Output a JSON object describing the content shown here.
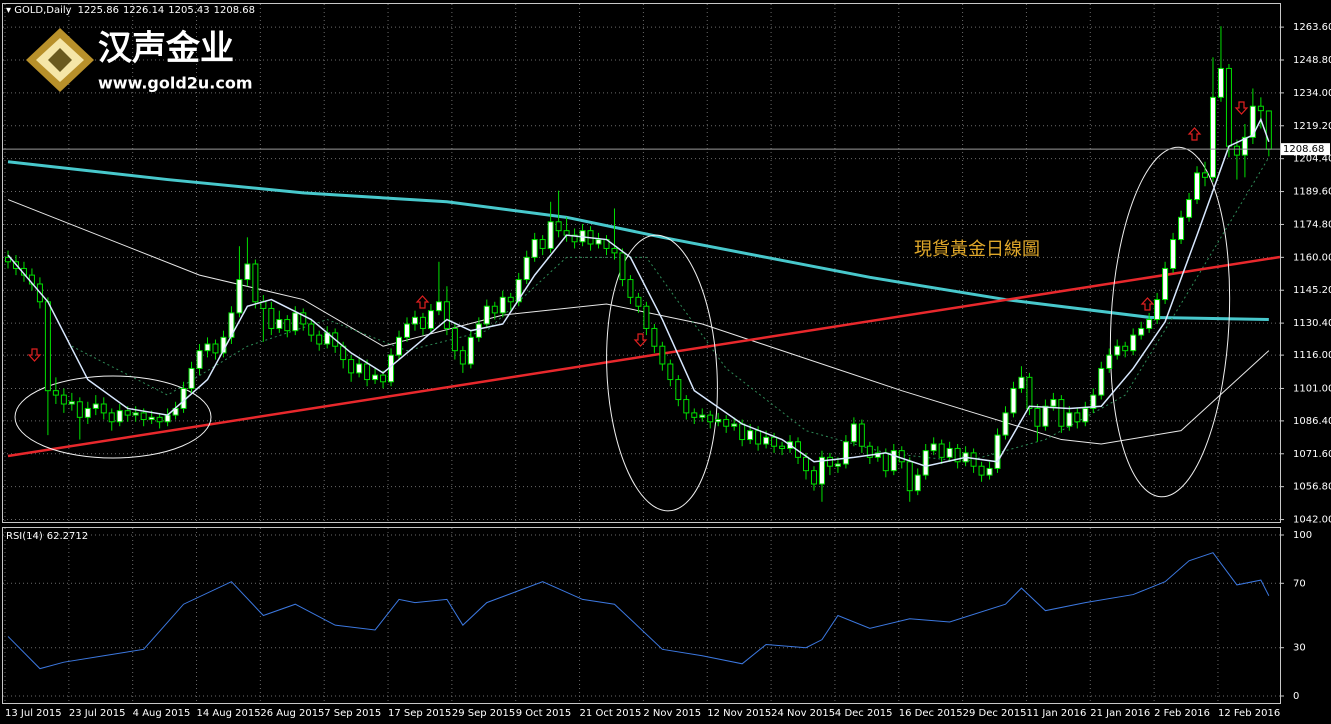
{
  "chart_data": {
    "type": "candlestick",
    "symbol": "GOLD,Daily",
    "logo": {
      "name": "汉声金业",
      "url": "www.gold2u.com"
    },
    "annotation": "現貨黃金日線圖",
    "bull_color": "#ffffff",
    "bear_color": "#000000",
    "wick_color": "#00e000",
    "grid": true,
    "ylim": [
      1040,
      1274
    ],
    "yticks": [
      {
        "value": 1263.6,
        "label": "1263.60"
      },
      {
        "value": 1248.8,
        "label": "1248.80"
      },
      {
        "value": 1234,
        "label": "1234.00"
      },
      {
        "value": 1219.2,
        "label": "1219.20"
      },
      {
        "value": 1204.4,
        "label": "1204.40"
      },
      {
        "value": 1189.6,
        "label": "1189.60"
      },
      {
        "value": 1174.8,
        "label": "1174.80"
      },
      {
        "value": 1160,
        "label": "1160.00"
      },
      {
        "value": 1145.2,
        "label": "1145.20"
      },
      {
        "value": 1130.4,
        "label": "1130.40"
      },
      {
        "value": 1116,
        "label": "1116.00"
      },
      {
        "value": 1101,
        "label": "1101.00"
      },
      {
        "value": 1086.4,
        "label": "1086.40"
      },
      {
        "value": 1071.6,
        "label": "1071.60"
      },
      {
        "value": 1056.8,
        "label": "1056.80"
      },
      {
        "value": 1042,
        "label": "1042.00"
      }
    ],
    "categories": [
      "13 Jul 2015",
      null,
      null,
      null,
      null,
      null,
      null,
      null,
      "23 Jul 2015",
      null,
      null,
      null,
      null,
      null,
      null,
      null,
      "4 Aug 2015",
      null,
      null,
      null,
      null,
      null,
      null,
      null,
      "14 Aug 2015",
      null,
      null,
      null,
      null,
      null,
      null,
      null,
      "26 Aug 2015",
      null,
      null,
      null,
      null,
      null,
      null,
      null,
      "7 Sep 2015",
      null,
      null,
      null,
      null,
      null,
      null,
      null,
      "17 Sep 2015",
      null,
      null,
      null,
      null,
      null,
      null,
      null,
      "29 Sep 2015",
      null,
      null,
      null,
      null,
      null,
      null,
      null,
      "9 Oct 2015",
      null,
      null,
      null,
      null,
      null,
      null,
      null,
      "21 Oct 2015",
      null,
      null,
      null,
      null,
      null,
      null,
      null,
      "2 Nov 2015",
      null,
      null,
      null,
      null,
      null,
      null,
      null,
      "12 Nov 2015",
      null,
      null,
      null,
      null,
      null,
      null,
      null,
      "24 Nov 2015",
      null,
      null,
      null,
      null,
      null,
      null,
      null,
      "4 Dec 2015",
      null,
      null,
      null,
      null,
      null,
      null,
      null,
      "16 Dec 2015",
      null,
      null,
      null,
      null,
      null,
      null,
      null,
      "29 Dec 2015",
      null,
      null,
      null,
      null,
      null,
      null,
      null,
      "11 Jan 2016",
      null,
      null,
      null,
      null,
      null,
      null,
      null,
      "21 Jan 2016",
      null,
      null,
      null,
      null,
      null,
      null,
      null,
      "2 Feb 2016",
      null,
      null,
      null,
      null,
      null,
      null,
      null,
      "12 Feb 2016",
      null,
      null,
      null,
      null,
      null,
      null
    ],
    "ohlc": [
      [
        1160,
        1163,
        1155,
        1158
      ],
      [
        1158,
        1161,
        1152,
        1155
      ],
      [
        1155,
        1158,
        1149,
        1152
      ],
      [
        1152,
        1155,
        1145,
        1148
      ],
      [
        1148,
        1151,
        1137,
        1140
      ],
      [
        1140,
        1142,
        1080,
        1100
      ],
      [
        1100,
        1106,
        1094,
        1098
      ],
      [
        1098,
        1101,
        1090,
        1094
      ],
      [
        1094,
        1099,
        1091,
        1095
      ],
      [
        1095,
        1097,
        1078,
        1088
      ],
      [
        1088,
        1095,
        1085,
        1092
      ],
      [
        1092,
        1098,
        1089,
        1094
      ],
      [
        1094,
        1097,
        1087,
        1090
      ],
      [
        1090,
        1092,
        1082,
        1086
      ],
      [
        1086,
        1094,
        1084,
        1091
      ],
      [
        1091,
        1093,
        1086,
        1089
      ],
      [
        1089,
        1093,
        1086,
        1090
      ],
      [
        1090,
        1092,
        1084,
        1087
      ],
      [
        1087,
        1091,
        1085,
        1088
      ],
      [
        1088,
        1090,
        1083,
        1086
      ],
      [
        1086,
        1092,
        1084,
        1089
      ],
      [
        1089,
        1095,
        1087,
        1092
      ],
      [
        1092,
        1104,
        1090,
        1101
      ],
      [
        1101,
        1113,
        1099,
        1110
      ],
      [
        1110,
        1121,
        1107,
        1118
      ],
      [
        1118,
        1124,
        1115,
        1121
      ],
      [
        1121,
        1123,
        1114,
        1117
      ],
      [
        1117,
        1127,
        1115,
        1124
      ],
      [
        1124,
        1138,
        1121,
        1135
      ],
      [
        1135,
        1165,
        1133,
        1150
      ],
      [
        1150,
        1169,
        1147,
        1157
      ],
      [
        1157,
        1159,
        1137,
        1140
      ],
      [
        1140,
        1143,
        1122,
        1137
      ],
      [
        1137,
        1140,
        1125,
        1128
      ],
      [
        1128,
        1136,
        1126,
        1132
      ],
      [
        1132,
        1134,
        1124,
        1127
      ],
      [
        1127,
        1138,
        1125,
        1135
      ],
      [
        1135,
        1137,
        1127,
        1130
      ],
      [
        1130,
        1132,
        1122,
        1125
      ],
      [
        1125,
        1127,
        1118,
        1121
      ],
      [
        1121,
        1129,
        1119,
        1126
      ],
      [
        1126,
        1128,
        1117,
        1120
      ],
      [
        1120,
        1122,
        1110,
        1114
      ],
      [
        1114,
        1116,
        1104,
        1108
      ],
      [
        1108,
        1115,
        1106,
        1112
      ],
      [
        1112,
        1114,
        1102,
        1105
      ],
      [
        1105,
        1110,
        1103,
        1107
      ],
      [
        1107,
        1109,
        1101,
        1104
      ],
      [
        1104,
        1119,
        1102,
        1116
      ],
      [
        1116,
        1127,
        1114,
        1124
      ],
      [
        1124,
        1133,
        1122,
        1130
      ],
      [
        1130,
        1136,
        1127,
        1133
      ],
      [
        1133,
        1135,
        1125,
        1128
      ],
      [
        1128,
        1139,
        1126,
        1136
      ],
      [
        1136,
        1158,
        1134,
        1140
      ],
      [
        1140,
        1147,
        1125,
        1128
      ],
      [
        1128,
        1130,
        1114,
        1118
      ],
      [
        1118,
        1120,
        1108,
        1112
      ],
      [
        1112,
        1127,
        1110,
        1124
      ],
      [
        1124,
        1133,
        1122,
        1130
      ],
      [
        1130,
        1141,
        1128,
        1138
      ],
      [
        1138,
        1140,
        1132,
        1135
      ],
      [
        1135,
        1145,
        1133,
        1142
      ],
      [
        1142,
        1144,
        1136,
        1140
      ],
      [
        1140,
        1153,
        1138,
        1150
      ],
      [
        1150,
        1163,
        1148,
        1160
      ],
      [
        1160,
        1171,
        1158,
        1168
      ],
      [
        1168,
        1170,
        1161,
        1164
      ],
      [
        1164,
        1185,
        1162,
        1176
      ],
      [
        1176,
        1190,
        1169,
        1172
      ],
      [
        1172,
        1178,
        1167,
        1170
      ],
      [
        1170,
        1173,
        1164,
        1167
      ],
      [
        1167,
        1175,
        1165,
        1172
      ],
      [
        1172,
        1174,
        1163,
        1166
      ],
      [
        1166,
        1171,
        1164,
        1168
      ],
      [
        1168,
        1170,
        1161,
        1164
      ],
      [
        1164,
        1182,
        1159,
        1162
      ],
      [
        1162,
        1164,
        1147,
        1150
      ],
      [
        1150,
        1152,
        1139,
        1142
      ],
      [
        1142,
        1144,
        1135,
        1138
      ],
      [
        1138,
        1140,
        1125,
        1128
      ],
      [
        1128,
        1130,
        1117,
        1120
      ],
      [
        1120,
        1122,
        1109,
        1112
      ],
      [
        1112,
        1114,
        1102,
        1105
      ],
      [
        1105,
        1107,
        1093,
        1096
      ],
      [
        1096,
        1098,
        1087,
        1090
      ],
      [
        1090,
        1092,
        1085,
        1088
      ],
      [
        1088,
        1092,
        1086,
        1089
      ],
      [
        1089,
        1091,
        1083,
        1086
      ],
      [
        1086,
        1090,
        1084,
        1087
      ],
      [
        1087,
        1089,
        1081,
        1084
      ],
      [
        1084,
        1088,
        1082,
        1085
      ],
      [
        1085,
        1087,
        1075,
        1078
      ],
      [
        1078,
        1085,
        1076,
        1082
      ],
      [
        1082,
        1084,
        1073,
        1076
      ],
      [
        1076,
        1082,
        1074,
        1079
      ],
      [
        1079,
        1081,
        1072,
        1075
      ],
      [
        1075,
        1077,
        1071,
        1074
      ],
      [
        1074,
        1080,
        1072,
        1077
      ],
      [
        1077,
        1079,
        1067,
        1070
      ],
      [
        1070,
        1072,
        1060,
        1064
      ],
      [
        1064,
        1066,
        1055,
        1058
      ],
      [
        1058,
        1073,
        1050,
        1070
      ],
      [
        1070,
        1072,
        1062,
        1066
      ],
      [
        1066,
        1070,
        1063,
        1067
      ],
      [
        1067,
        1080,
        1065,
        1077
      ],
      [
        1077,
        1088,
        1075,
        1085
      ],
      [
        1085,
        1087,
        1072,
        1075
      ],
      [
        1075,
        1077,
        1067,
        1070
      ],
      [
        1070,
        1075,
        1068,
        1072
      ],
      [
        1072,
        1074,
        1061,
        1064
      ],
      [
        1064,
        1076,
        1062,
        1073
      ],
      [
        1073,
        1075,
        1065,
        1068
      ],
      [
        1068,
        1070,
        1050,
        1055
      ],
      [
        1055,
        1065,
        1053,
        1062
      ],
      [
        1062,
        1076,
        1060,
        1073
      ],
      [
        1073,
        1079,
        1071,
        1076
      ],
      [
        1076,
        1078,
        1067,
        1070
      ],
      [
        1070,
        1077,
        1068,
        1074
      ],
      [
        1074,
        1076,
        1065,
        1068
      ],
      [
        1068,
        1075,
        1066,
        1072
      ],
      [
        1072,
        1074,
        1063,
        1066
      ],
      [
        1066,
        1068,
        1059,
        1062
      ],
      [
        1062,
        1068,
        1060,
        1065
      ],
      [
        1065,
        1083,
        1063,
        1080
      ],
      [
        1080,
        1093,
        1078,
        1090
      ],
      [
        1090,
        1104,
        1088,
        1101
      ],
      [
        1101,
        1111,
        1099,
        1106
      ],
      [
        1106,
        1108,
        1089,
        1092
      ],
      [
        1092,
        1094,
        1077,
        1084
      ],
      [
        1084,
        1096,
        1082,
        1093
      ],
      [
        1093,
        1099,
        1091,
        1096
      ],
      [
        1096,
        1098,
        1081,
        1084
      ],
      [
        1084,
        1093,
        1082,
        1090
      ],
      [
        1090,
        1092,
        1083,
        1086
      ],
      [
        1086,
        1095,
        1084,
        1092
      ],
      [
        1092,
        1101,
        1090,
        1098
      ],
      [
        1098,
        1113,
        1096,
        1110
      ],
      [
        1110,
        1119,
        1108,
        1116
      ],
      [
        1116,
        1123,
        1114,
        1120
      ],
      [
        1120,
        1122,
        1115,
        1118
      ],
      [
        1118,
        1128,
        1116,
        1125
      ],
      [
        1125,
        1131,
        1123,
        1128
      ],
      [
        1128,
        1135,
        1126,
        1132
      ],
      [
        1132,
        1144,
        1130,
        1141
      ],
      [
        1141,
        1158,
        1139,
        1155
      ],
      [
        1155,
        1171,
        1153,
        1168
      ],
      [
        1168,
        1181,
        1166,
        1178
      ],
      [
        1178,
        1189,
        1176,
        1186
      ],
      [
        1186,
        1201,
        1184,
        1198
      ],
      [
        1198,
        1203,
        1192,
        1196
      ],
      [
        1196,
        1250,
        1194,
        1232
      ],
      [
        1232,
        1264,
        1230,
        1245
      ],
      [
        1245,
        1247,
        1205,
        1210
      ],
      [
        1210,
        1213,
        1195,
        1206
      ],
      [
        1206,
        1220,
        1196,
        1214
      ],
      [
        1214,
        1236,
        1211,
        1228
      ],
      [
        1228,
        1232,
        1218,
        1226
      ],
      [
        1225.86,
        1226.14,
        1205.43,
        1208.68
      ]
    ],
    "indicators": [
      {
        "color": "#48c8cc",
        "width": 3,
        "dash": false,
        "x": [
          0,
          20,
          37,
          55,
          70,
          82,
          95,
          108,
          125,
          143,
          158
        ],
        "values": [
          1203,
          1195,
          1189,
          1185,
          1178,
          1169,
          1160,
          1151,
          1141,
          1133,
          1132
        ]
      },
      {
        "color": "#e8e8e8",
        "width": 1,
        "dash": false,
        "x": [
          0,
          24,
          37,
          47,
          62,
          75,
          87,
          112,
          132,
          137,
          147,
          158
        ],
        "values": [
          1186,
          1152,
          1141,
          1120,
          1134,
          1139,
          1130,
          1100,
          1078,
          1076,
          1082,
          1118
        ]
      },
      {
        "color": "#2e8b57",
        "width": 1,
        "dash": true,
        "x": [
          8,
          20,
          30,
          40,
          50,
          60,
          70,
          80,
          90,
          100,
          110,
          120,
          130,
          140,
          148,
          158
        ],
        "values": [
          1120,
          1098,
          1120,
          1132,
          1118,
          1127,
          1160,
          1160,
          1110,
          1082,
          1072,
          1068,
          1078,
          1098,
          1145,
          1205
        ]
      },
      {
        "color": "#d8e8ff",
        "width": 1.5,
        "dash": false,
        "x": [
          0,
          5,
          10,
          15,
          20,
          25,
          30,
          33,
          38,
          43,
          47,
          51,
          55,
          58,
          62,
          66,
          70,
          75,
          78,
          82,
          86,
          92,
          97,
          101,
          106,
          110,
          115,
          120,
          124,
          128,
          133,
          137,
          141,
          145,
          149,
          153,
          156,
          157,
          158
        ],
        "values": [
          1161,
          1140,
          1105,
          1092,
          1089,
          1105,
          1138,
          1141,
          1132,
          1117,
          1108,
          1120,
          1132,
          1127,
          1130,
          1152,
          1170,
          1168,
          1160,
          1132,
          1100,
          1085,
          1078,
          1068,
          1070,
          1072,
          1066,
          1070,
          1068,
          1093,
          1092,
          1093,
          1110,
          1131,
          1170,
          1210,
          1215,
          1222,
          1212
        ]
      }
    ],
    "rsi": {
      "title": "RSI(14)",
      "color": "#3c78e0",
      "ylim": [
        0,
        100
      ],
      "yticks": [
        100,
        70,
        30,
        0
      ],
      "x": [
        0,
        4,
        7,
        12,
        17,
        22,
        28,
        32,
        36,
        41,
        46,
        49,
        51,
        55,
        57,
        60,
        67,
        72,
        76,
        82,
        87,
        92,
        95,
        100,
        102,
        104,
        108,
        113,
        118,
        125,
        127,
        130,
        135,
        141,
        145,
        148,
        151,
        154,
        157,
        158
      ],
      "values": [
        37,
        17,
        21,
        25,
        29,
        57,
        71,
        50,
        57,
        44,
        41,
        60,
        58,
        60,
        44,
        58,
        71,
        60,
        57,
        29,
        25,
        20,
        32,
        30,
        35,
        50,
        42,
        48,
        46,
        57,
        67,
        53,
        58,
        63,
        71,
        84,
        89,
        69,
        72,
        62.2712
      ]
    }
  }
}
